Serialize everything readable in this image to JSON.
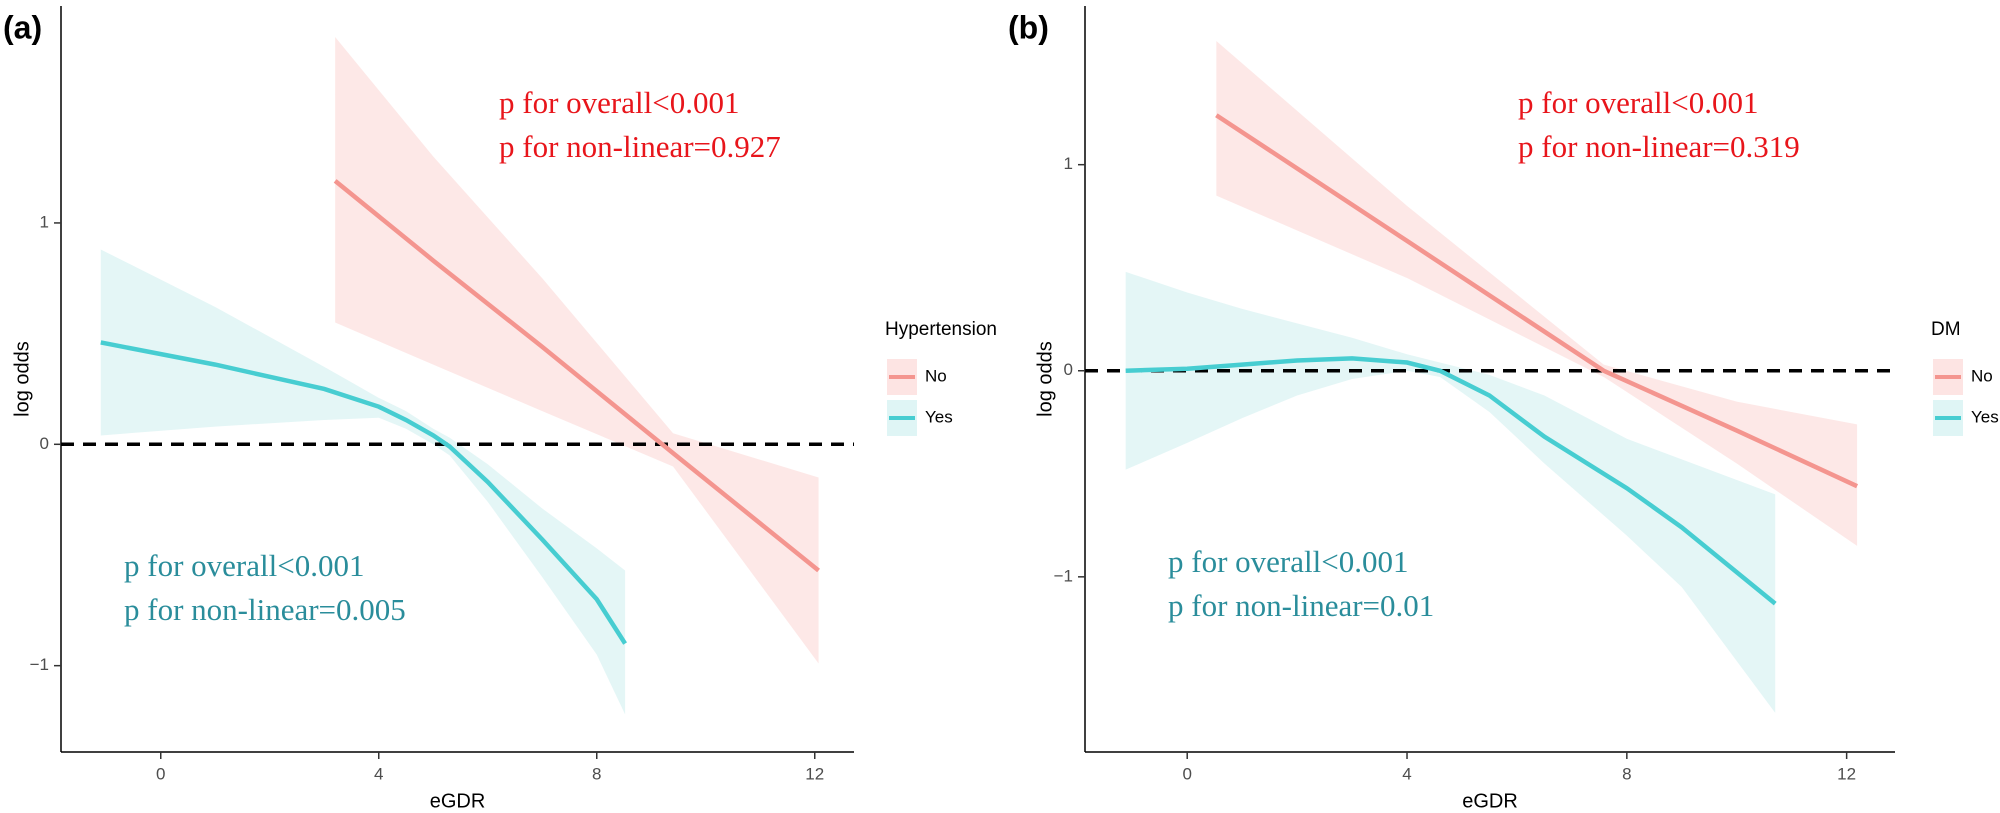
{
  "chart_data": [
    {
      "type": "line",
      "panel_label": "(a)",
      "xlabel": "eGDR",
      "ylabel": "log odds",
      "xlim": [
        -1.83,
        12.72
      ],
      "ylim": [
        -1.39,
        1.98
      ],
      "xticks": [
        0,
        4,
        8,
        12
      ],
      "yticks": [
        {
          "value": -1,
          "label": "−1"
        },
        0,
        1
      ],
      "hline": 0,
      "legend_title": "Hypertension",
      "series": [
        {
          "name": "No",
          "color": "#f4958f",
          "band_color": "#fde4e3",
          "x": [
            3.2,
            5,
            7,
            9.4,
            12.07
          ],
          "values": [
            1.19,
            0.83,
            0.44,
            -0.04,
            -0.57
          ],
          "upper": [
            1.84,
            1.3,
            0.75,
            0.05,
            -0.15
          ],
          "lower": [
            0.55,
            0.36,
            0.15,
            -0.1,
            -0.99
          ]
        },
        {
          "name": "Yes",
          "color": "#47cdd1",
          "band_color": "#dff5f5",
          "x": [
            -1.1,
            1,
            3,
            4,
            4.5,
            5,
            5.3,
            6,
            7,
            8,
            8.52
          ],
          "values": [
            0.46,
            0.36,
            0.25,
            0.17,
            0.11,
            0.04,
            -0.01,
            -0.17,
            -0.43,
            -0.7,
            -0.9
          ],
          "upper": [
            0.88,
            0.62,
            0.35,
            0.21,
            0.15,
            0.07,
            0.03,
            -0.09,
            -0.29,
            -0.47,
            -0.57
          ],
          "lower": [
            0.04,
            0.08,
            0.11,
            0.12,
            0.07,
            0.0,
            -0.05,
            -0.26,
            -0.6,
            -0.95,
            -1.22
          ]
        }
      ],
      "annotations": [
        {
          "color": "#e8151b",
          "lines": [
            "p for overall<0.001",
            "p for non-linear=0.927"
          ]
        },
        {
          "color": "#2a8d9b",
          "lines": [
            "p for overall<0.001",
            "p for non-linear=0.005"
          ]
        }
      ]
    },
    {
      "type": "line",
      "panel_label": "(b)",
      "xlabel": "eGDR",
      "ylabel": "log odds",
      "xlim": [
        -1.86,
        12.88
      ],
      "ylim": [
        -1.85,
        1.77
      ],
      "xticks": [
        0,
        4,
        8,
        12
      ],
      "yticks": [
        {
          "value": -1,
          "label": "−1"
        },
        0,
        1
      ],
      "hline": 0,
      "legend_title": "DM",
      "series": [
        {
          "name": "No",
          "color": "#f4958f",
          "band_color": "#fde4e3",
          "x": [
            0.53,
            4,
            7.58,
            10,
            12.19
          ],
          "values": [
            1.24,
            0.63,
            0,
            -0.29,
            -0.56
          ],
          "upper": [
            1.6,
            0.8,
            0.03,
            -0.15,
            -0.26
          ],
          "lower": [
            0.85,
            0.45,
            -0.03,
            -0.45,
            -0.85
          ]
        },
        {
          "name": "Yes",
          "color": "#47cdd1",
          "band_color": "#dff5f5",
          "x": [
            -1.12,
            0,
            1,
            2,
            3,
            4,
            4.6,
            5.5,
            6.5,
            8,
            9,
            10.7
          ],
          "values": [
            0,
            0.01,
            0.03,
            0.05,
            0.06,
            0.04,
            0,
            -0.12,
            -0.32,
            -0.57,
            -0.76,
            -1.13
          ],
          "upper": [
            0.48,
            0.38,
            0.3,
            0.23,
            0.16,
            0.08,
            0.04,
            -0.02,
            -0.12,
            -0.33,
            -0.43,
            -0.6
          ],
          "lower": [
            -0.48,
            -0.35,
            -0.23,
            -0.12,
            -0.04,
            0.0,
            -0.03,
            -0.2,
            -0.45,
            -0.8,
            -1.05,
            -1.66
          ]
        }
      ],
      "annotations": [
        {
          "color": "#e8151b",
          "lines": [
            "p for overall<0.001",
            "p for non-linear=0.319"
          ]
        },
        {
          "color": "#2a8d9b",
          "lines": [
            "p for overall<0.001",
            "p for non-linear=0.01"
          ]
        }
      ]
    }
  ]
}
